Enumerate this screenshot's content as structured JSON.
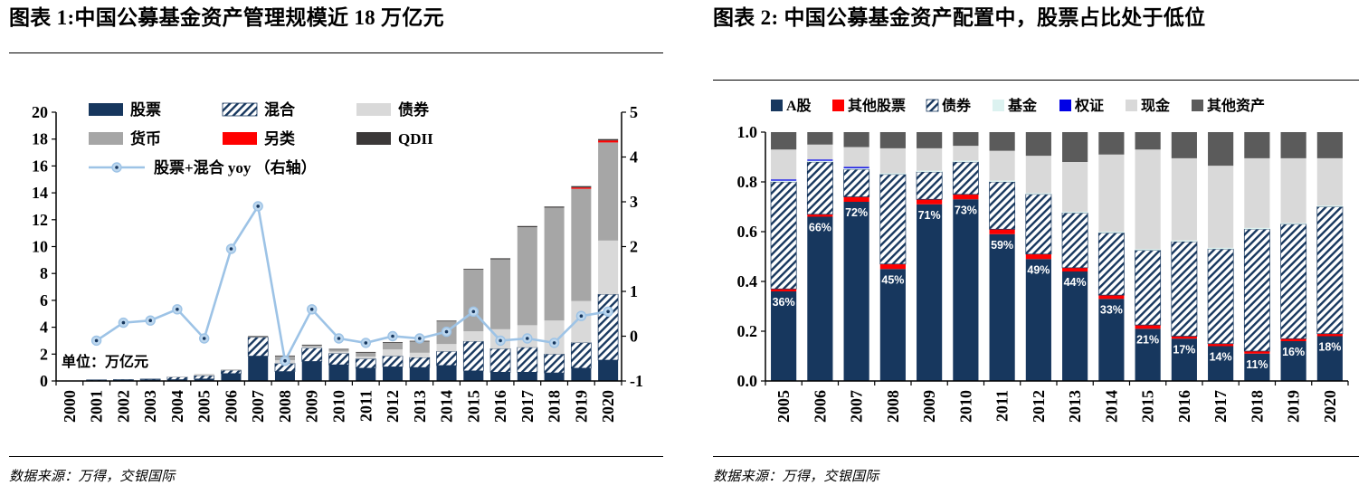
{
  "panels": [
    {
      "title": "图表 1:中国公募基金资产管理规模近 18 万亿元",
      "source": "数据来源：万得，交银国际"
    },
    {
      "title": "图表 2: 中国公募基金资产配置中，股票占比处于低位",
      "source": "数据来源：万得，交银国际"
    }
  ],
  "chart_data": [
    {
      "type": "bar",
      "subtype": "stacked-bars-with-line",
      "title": "图表 1:中国公募基金资产管理规模近 18 万亿元",
      "unit_label": "单位：万亿元",
      "categories": [
        "2000",
        "2001",
        "2002",
        "2003",
        "2004",
        "2005",
        "2006",
        "2007",
        "2008",
        "2009",
        "2010",
        "2011",
        "2012",
        "2013",
        "2014",
        "2015",
        "2016",
        "2017",
        "2018",
        "2019",
        "2020"
      ],
      "series": [
        {
          "name": "股票",
          "color": "#17375E",
          "values": [
            0.03,
            0.05,
            0.06,
            0.08,
            0.1,
            0.15,
            0.55,
            1.85,
            0.7,
            1.45,
            1.2,
            0.95,
            1.05,
            1.0,
            1.15,
            0.75,
            0.65,
            0.65,
            0.6,
            0.95,
            1.55
          ]
        },
        {
          "name": "混合",
          "style": "hatch",
          "hatch_color": "#17375E",
          "values": [
            0,
            0.03,
            0.04,
            0.06,
            0.2,
            0.25,
            0.25,
            1.4,
            0.6,
            1.0,
            0.85,
            0.7,
            0.8,
            0.75,
            1.05,
            2.2,
            1.75,
            1.85,
            1.4,
            1.9,
            4.9
          ]
        },
        {
          "name": "债券",
          "color": "#D9D9D9",
          "values": [
            0,
            0,
            0,
            0,
            0.03,
            0.05,
            0.04,
            0.06,
            0.25,
            0.1,
            0.14,
            0.17,
            0.5,
            0.35,
            0.55,
            0.75,
            1.45,
            1.65,
            2.5,
            3.1,
            4.0
          ]
        },
        {
          "name": "货币",
          "color": "#A6A6A6",
          "values": [
            0,
            0,
            0,
            0,
            0,
            0.05,
            0.01,
            0.01,
            0.29,
            0.1,
            0.15,
            0.3,
            0.5,
            0.85,
            1.7,
            4.6,
            5.2,
            7.3,
            8.4,
            8.35,
            7.3
          ]
        },
        {
          "name": "另类",
          "color": "#FF0000",
          "values": [
            0,
            0,
            0,
            0,
            0,
            0,
            0,
            0,
            0,
            0,
            0,
            0,
            0,
            0,
            0,
            0,
            0,
            0,
            0,
            0.1,
            0.15
          ]
        },
        {
          "name": "QDII",
          "color": "#3B3838",
          "values": [
            0,
            0,
            0,
            0,
            0,
            0,
            0,
            0.02,
            0.05,
            0.05,
            0.05,
            0.04,
            0.04,
            0.04,
            0.04,
            0.05,
            0.08,
            0.08,
            0.08,
            0.1,
            0.1
          ]
        }
      ],
      "line_series": {
        "name": "股票+混合 yoy （右轴）",
        "color": "#9DC3E6",
        "marker_fill": "#BDD7EE",
        "dot_color": "#17375E",
        "values": [
          null,
          -0.1,
          0.3,
          0.35,
          0.6,
          -0.05,
          1.95,
          2.9,
          -0.55,
          0.6,
          -0.05,
          -0.15,
          0.0,
          -0.05,
          0.1,
          0.55,
          -0.1,
          -0.05,
          -0.15,
          0.45,
          0.55
        ]
      },
      "y_left": {
        "min": 0,
        "max": 20,
        "step": 2
      },
      "y_right": {
        "min": -1,
        "max": 5,
        "step": 1
      }
    },
    {
      "type": "bar",
      "subtype": "stacked-100pct",
      "title": "图表 2: 中国公募基金资产配置中，股票占比处于低位",
      "categories": [
        "2005",
        "2006",
        "2007",
        "2008",
        "2009",
        "2010",
        "2011",
        "2012",
        "2013",
        "2014",
        "2015",
        "2016",
        "2017",
        "2018",
        "2019",
        "2020"
      ],
      "series": [
        {
          "name": "A股",
          "color": "#17375E",
          "values": [
            36,
            66,
            72,
            45,
            71,
            73,
            59,
            49,
            44,
            33,
            21,
            17,
            14,
            11,
            16,
            18
          ]
        },
        {
          "name": "其他股票",
          "color": "#FF0000",
          "values": [
            1,
            1,
            2,
            2,
            2,
            2,
            2,
            2,
            1.5,
            1.5,
            1.5,
            1,
            1,
            1,
            1,
            1
          ]
        },
        {
          "name": "债券",
          "style": "hatch",
          "hatch_color": "#17375E",
          "values": [
            43,
            21,
            11,
            36,
            11,
            13,
            19,
            24,
            22,
            25,
            30,
            38,
            38,
            49,
            46,
            51
          ]
        },
        {
          "name": "基金",
          "color": "#DCF2F0",
          "values": [
            0.5,
            0.5,
            0.5,
            0.5,
            0.5,
            0.5,
            0.5,
            0.5,
            0.5,
            0.5,
            0.5,
            0.5,
            0.5,
            0.5,
            0.5,
            0.5
          ]
        },
        {
          "name": "权证",
          "color": "#0000E6",
          "values": [
            0.5,
            0.5,
            0.5,
            0,
            0,
            0,
            0,
            0,
            0,
            0,
            0,
            0,
            0,
            0,
            0,
            0
          ]
        },
        {
          "name": "现金",
          "color": "#D9D9D9",
          "values": [
            12,
            6,
            8,
            10,
            9,
            6,
            12,
            15,
            20,
            31,
            40,
            33,
            33,
            28,
            26,
            19
          ]
        },
        {
          "name": "其他资产",
          "color": "#5B5B5B",
          "values": [
            7,
            5,
            6,
            6.5,
            6.5,
            5.5,
            7.5,
            9.5,
            12,
            9,
            7,
            10.5,
            13.5,
            10.5,
            10.5,
            10.5
          ]
        }
      ],
      "bar_labels": {
        "series": "A股",
        "color": "#FFFFFF",
        "values": [
          "36%",
          "66%",
          "72%",
          "45%",
          "71%",
          "73%",
          "59%",
          "49%",
          "44%",
          "33%",
          "21%",
          "17%",
          "14%",
          "11%",
          "16%",
          "18%"
        ]
      },
      "y_axis": {
        "min": 0,
        "max": 1,
        "step": 0.2,
        "decimals": 1
      }
    }
  ]
}
